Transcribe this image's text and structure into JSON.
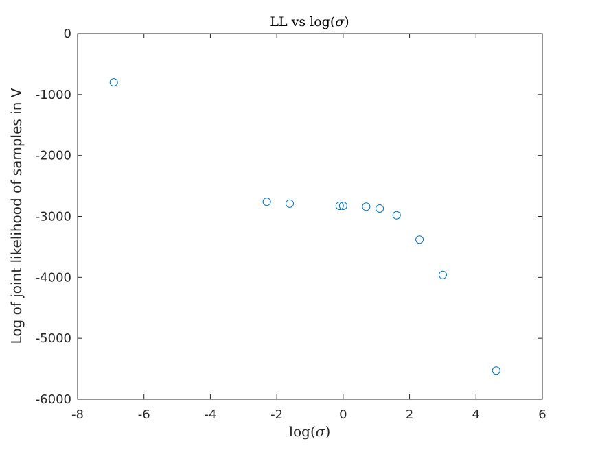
{
  "chart_data": {
    "type": "scatter",
    "title": "LL vs log(σ)",
    "xlabel": "log(σ)",
    "ylabel": "Log of joint likelihood of samples in V",
    "xlim": [
      -8,
      6
    ],
    "ylim": [
      -6000,
      0
    ],
    "xticks": [
      -8,
      -6,
      -4,
      -2,
      0,
      2,
      4,
      6
    ],
    "yticks": [
      0,
      -1000,
      -2000,
      -3000,
      -4000,
      -5000,
      -6000
    ],
    "grid": false,
    "marker": "circle-open",
    "marker_color": "#0072BD",
    "points": [
      {
        "x": -6.91,
        "y": -800
      },
      {
        "x": -2.3,
        "y": -2760
      },
      {
        "x": -1.61,
        "y": -2790
      },
      {
        "x": -0.105,
        "y": -2825
      },
      {
        "x": 0.0,
        "y": -2825
      },
      {
        "x": 0.693,
        "y": -2840
      },
      {
        "x": 1.1,
        "y": -2870
      },
      {
        "x": 1.61,
        "y": -2980
      },
      {
        "x": 2.3,
        "y": -3380
      },
      {
        "x": 3.0,
        "y": -3960
      },
      {
        "x": 4.61,
        "y": -5530
      }
    ]
  },
  "title_parts": {
    "main": "LL vs log(",
    "sigma": "σ",
    "close": ")"
  },
  "xlabel_parts": {
    "main": "log(",
    "sigma": "σ",
    "close": ")"
  }
}
